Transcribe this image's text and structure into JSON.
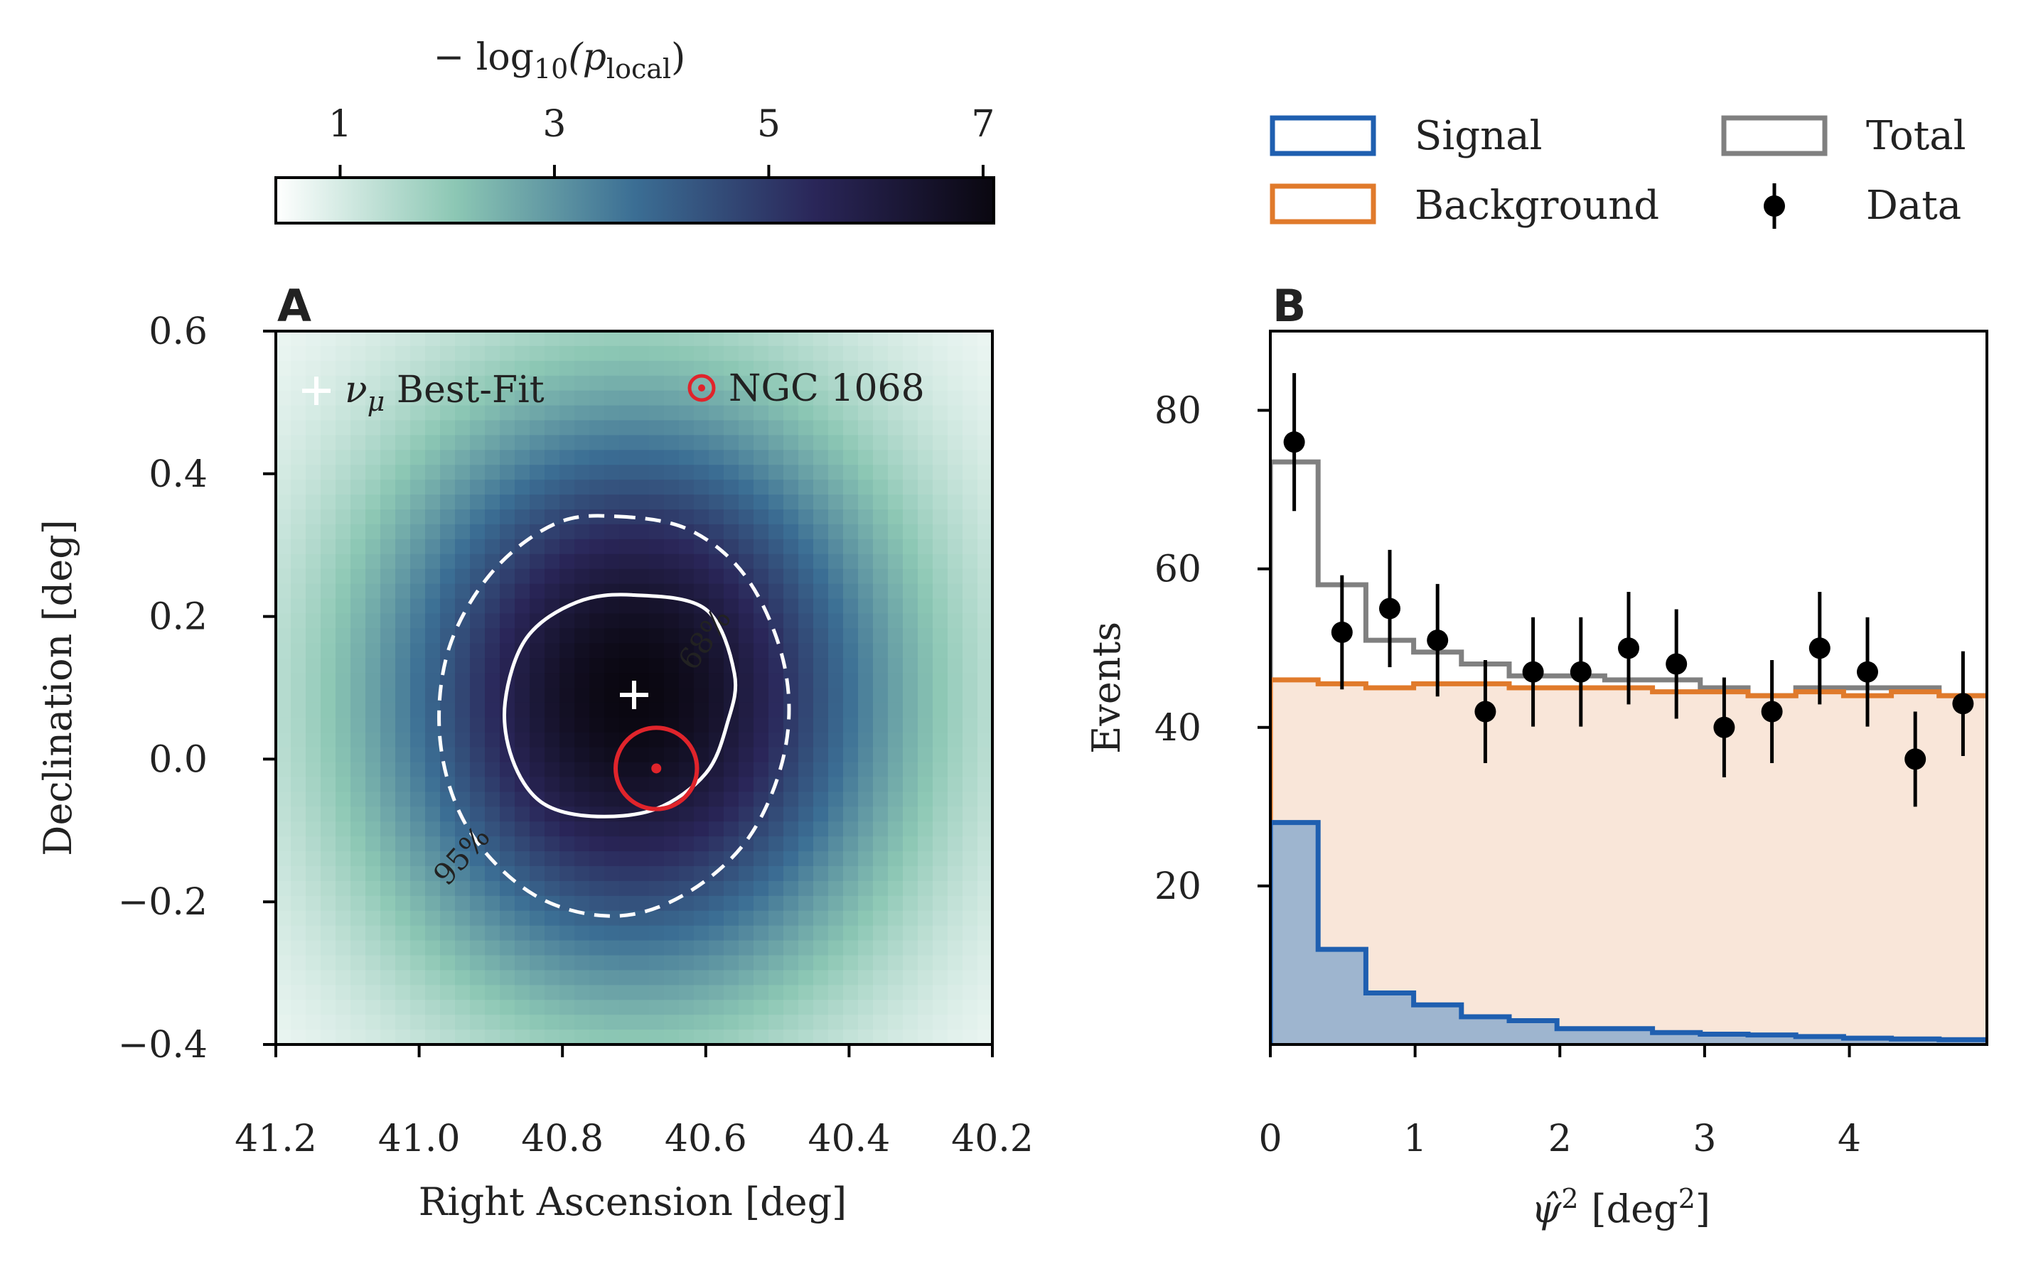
{
  "chart_data": [
    {
      "type": "heatmap",
      "panel_label": "A",
      "xlabel": "Right Ascension [deg]",
      "ylabel": "Declination [deg]",
      "xlim": [
        41.2,
        40.2
      ],
      "ylim": [
        -0.4,
        0.6
      ],
      "xticks": [
        41.2,
        41.0,
        40.8,
        40.6,
        40.4,
        40.2
      ],
      "xtick_labels": [
        "41.2",
        "41.0",
        "40.8",
        "40.6",
        "40.4",
        "40.2"
      ],
      "yticks": [
        -0.4,
        -0.2,
        0.0,
        0.2,
        0.4,
        0.6
      ],
      "ytick_labels": [
        "−0.4",
        "−0.2",
        "0.0",
        "0.2",
        "0.4",
        "0.6"
      ],
      "colorbar": {
        "label": "− log₁₀(p_local)",
        "label_main": "− log",
        "label_sub": "10",
        "label_paren_open": "(p",
        "label_sub2": "local",
        "label_paren_close": ")",
        "range": [
          0.4,
          7.1
        ],
        "ticks": [
          1,
          3,
          5,
          7
        ],
        "tick_labels": [
          "1",
          "3",
          "5",
          "7"
        ],
        "colors": [
          "#ffffff",
          "#8cc7b4",
          "#3b6e94",
          "#2a2659",
          "#0a0710"
        ]
      },
      "peak_value": 7.1,
      "edge_value": 0.5,
      "best_fit": {
        "ra": 40.7,
        "dec": 0.09,
        "label": "νμ Best-Fit",
        "label_prefix": "ν",
        "label_sub": "μ",
        "label_rest": " Best-Fit",
        "marker_color": "#ffffff"
      },
      "source": {
        "ra": 40.669,
        "dec": -0.013,
        "label": "NGC 1068",
        "color": "#e0242b",
        "circle_radius_deg": 0.057
      },
      "contours": [
        {
          "level_label": "68%",
          "style": "solid",
          "color": "#ffffff",
          "points": [
            [
              40.6,
              0.21
            ],
            [
              40.7,
              0.23
            ],
            [
              40.78,
              0.22
            ],
            [
              40.85,
              0.17
            ],
            [
              40.88,
              0.08
            ],
            [
              40.87,
              0.0
            ],
            [
              40.83,
              -0.06
            ],
            [
              40.76,
              -0.08
            ],
            [
              40.67,
              -0.07
            ],
            [
              40.6,
              -0.02
            ],
            [
              40.57,
              0.05
            ],
            [
              40.56,
              0.12
            ]
          ]
        },
        {
          "level_label": "95%",
          "style": "dashed",
          "color": "#ffffff",
          "points": [
            [
              40.72,
              0.34
            ],
            [
              40.62,
              0.32
            ],
            [
              40.54,
              0.25
            ],
            [
              40.49,
              0.13
            ],
            [
              40.49,
              0.01
            ],
            [
              40.54,
              -0.11
            ],
            [
              40.63,
              -0.19
            ],
            [
              40.73,
              -0.22
            ],
            [
              40.84,
              -0.19
            ],
            [
              40.93,
              -0.1
            ],
            [
              40.97,
              0.02
            ],
            [
              40.96,
              0.15
            ],
            [
              40.9,
              0.26
            ],
            [
              40.81,
              0.33
            ]
          ]
        }
      ]
    },
    {
      "type": "bar",
      "panel_label": "B",
      "xlabel": "ψ̂² [deg²]",
      "xlabel_main": "ψ̂",
      "xlabel_sup": "2",
      "xlabel_unit_open": "[deg",
      "xlabel_unit_sup": "2",
      "xlabel_unit_close": "]",
      "ylabel": "Events",
      "xlim": [
        0,
        4.95
      ],
      "ylim": [
        0,
        90
      ],
      "xticks": [
        0,
        1,
        2,
        3,
        4
      ],
      "xtick_labels": [
        "0",
        "1",
        "2",
        "3",
        "4"
      ],
      "yticks": [
        20,
        40,
        60,
        80
      ],
      "ytick_labels": [
        "20",
        "40",
        "60",
        "80"
      ],
      "bin_edges": [
        0,
        0.33,
        0.66,
        0.99,
        1.32,
        1.65,
        1.98,
        2.31,
        2.64,
        2.97,
        3.3,
        3.63,
        3.96,
        4.29,
        4.62,
        4.95
      ],
      "legend": [
        {
          "name": "Signal",
          "kind": "box",
          "color": "#1f5fb0"
        },
        {
          "name": "Total",
          "kind": "box",
          "color": "#808080"
        },
        {
          "name": "Background",
          "kind": "box",
          "color": "#e07a2b"
        },
        {
          "name": "Data",
          "kind": "errorbar",
          "color": "#000000"
        }
      ],
      "series": [
        {
          "name": "Signal",
          "color": "#1f5fb0",
          "fill": "#9eb5cf",
          "values": [
            28,
            12,
            6.5,
            5,
            3.5,
            3,
            2,
            2,
            1.5,
            1.3,
            1.2,
            1,
            0.8,
            0.7,
            0.6
          ]
        },
        {
          "name": "Background",
          "color": "#e07a2b",
          "fill": "#f9e6d9",
          "values": [
            46,
            45.5,
            45,
            45.5,
            45.5,
            45,
            45,
            45,
            44.5,
            44.5,
            44,
            44.5,
            44,
            44.5,
            44
          ]
        },
        {
          "name": "Total",
          "color": "#808080",
          "values": [
            73.5,
            58,
            51,
            49.5,
            48,
            46.5,
            46.5,
            46,
            46,
            45,
            44,
            45,
            45,
            45,
            44
          ]
        }
      ],
      "data_points": {
        "name": "Data",
        "x": [
          0.165,
          0.495,
          0.825,
          1.155,
          1.485,
          1.815,
          2.145,
          2.475,
          2.805,
          3.135,
          3.465,
          3.795,
          4.125,
          4.455,
          4.785
        ],
        "y": [
          76,
          52,
          55,
          51,
          42,
          47,
          47,
          50,
          48,
          40,
          42,
          50,
          47,
          36,
          43
        ],
        "err": [
          8.7,
          7.2,
          7.4,
          7.1,
          6.5,
          6.9,
          6.9,
          7.1,
          6.9,
          6.3,
          6.5,
          7.1,
          6.9,
          6.0,
          6.6
        ]
      }
    }
  ]
}
